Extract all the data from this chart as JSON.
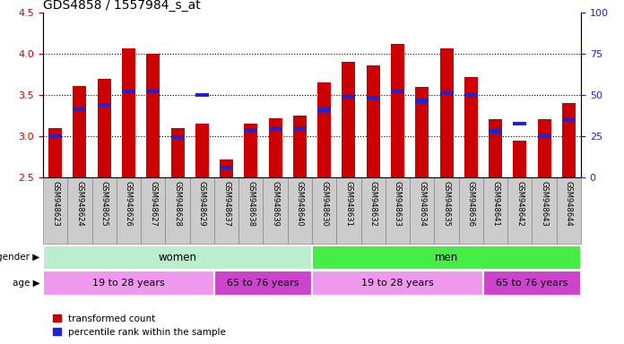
{
  "title": "GDS4858 / 1557984_s_at",
  "samples": [
    "GSM948623",
    "GSM948624",
    "GSM948625",
    "GSM948626",
    "GSM948627",
    "GSM948628",
    "GSM948629",
    "GSM948637",
    "GSM948638",
    "GSM948639",
    "GSM948640",
    "GSM948630",
    "GSM948631",
    "GSM948632",
    "GSM948633",
    "GSM948634",
    "GSM948635",
    "GSM948636",
    "GSM948641",
    "GSM948642",
    "GSM948643",
    "GSM948644"
  ],
  "transformed_count": [
    3.1,
    3.61,
    3.7,
    4.07,
    4.0,
    3.1,
    3.15,
    2.72,
    3.15,
    3.22,
    3.25,
    3.65,
    3.9,
    3.86,
    4.12,
    3.6,
    4.06,
    3.72,
    3.21,
    2.95,
    3.21,
    3.4
  ],
  "percentile_rank_val": [
    3.0,
    3.33,
    3.38,
    3.54,
    3.54,
    2.99,
    3.5,
    2.62,
    3.07,
    3.1,
    3.1,
    3.32,
    3.48,
    3.47,
    3.54,
    3.43,
    3.52,
    3.5,
    3.06,
    3.15,
    3.0,
    3.2
  ],
  "ymin": 2.5,
  "ymax": 4.5,
  "y_ticks_left": [
    2.5,
    3.0,
    3.5,
    4.0,
    4.5
  ],
  "right_ticks_pct": [
    0,
    25,
    50,
    75,
    100
  ],
  "bar_color": "#cc0000",
  "percentile_color": "#2222cc",
  "gender_groups": [
    {
      "label": "women",
      "start": 0,
      "end": 11,
      "color": "#bbeecc"
    },
    {
      "label": "men",
      "start": 11,
      "end": 22,
      "color": "#44ee44"
    }
  ],
  "age_groups": [
    {
      "label": "19 to 28 years",
      "start": 0,
      "end": 7,
      "color": "#ee99ee"
    },
    {
      "label": "65 to 76 years",
      "start": 7,
      "end": 11,
      "color": "#cc44cc"
    },
    {
      "label": "19 to 28 years",
      "start": 11,
      "end": 18,
      "color": "#ee99ee"
    },
    {
      "label": "65 to 76 years",
      "start": 18,
      "end": 22,
      "color": "#cc44cc"
    }
  ],
  "grid_lines": [
    3.0,
    3.5,
    4.0
  ],
  "left_tick_color": "#cc0000",
  "right_tick_color": "#2222cc",
  "bar_width": 0.55,
  "sample_box_color": "#cccccc",
  "sample_box_edge": "#888888"
}
